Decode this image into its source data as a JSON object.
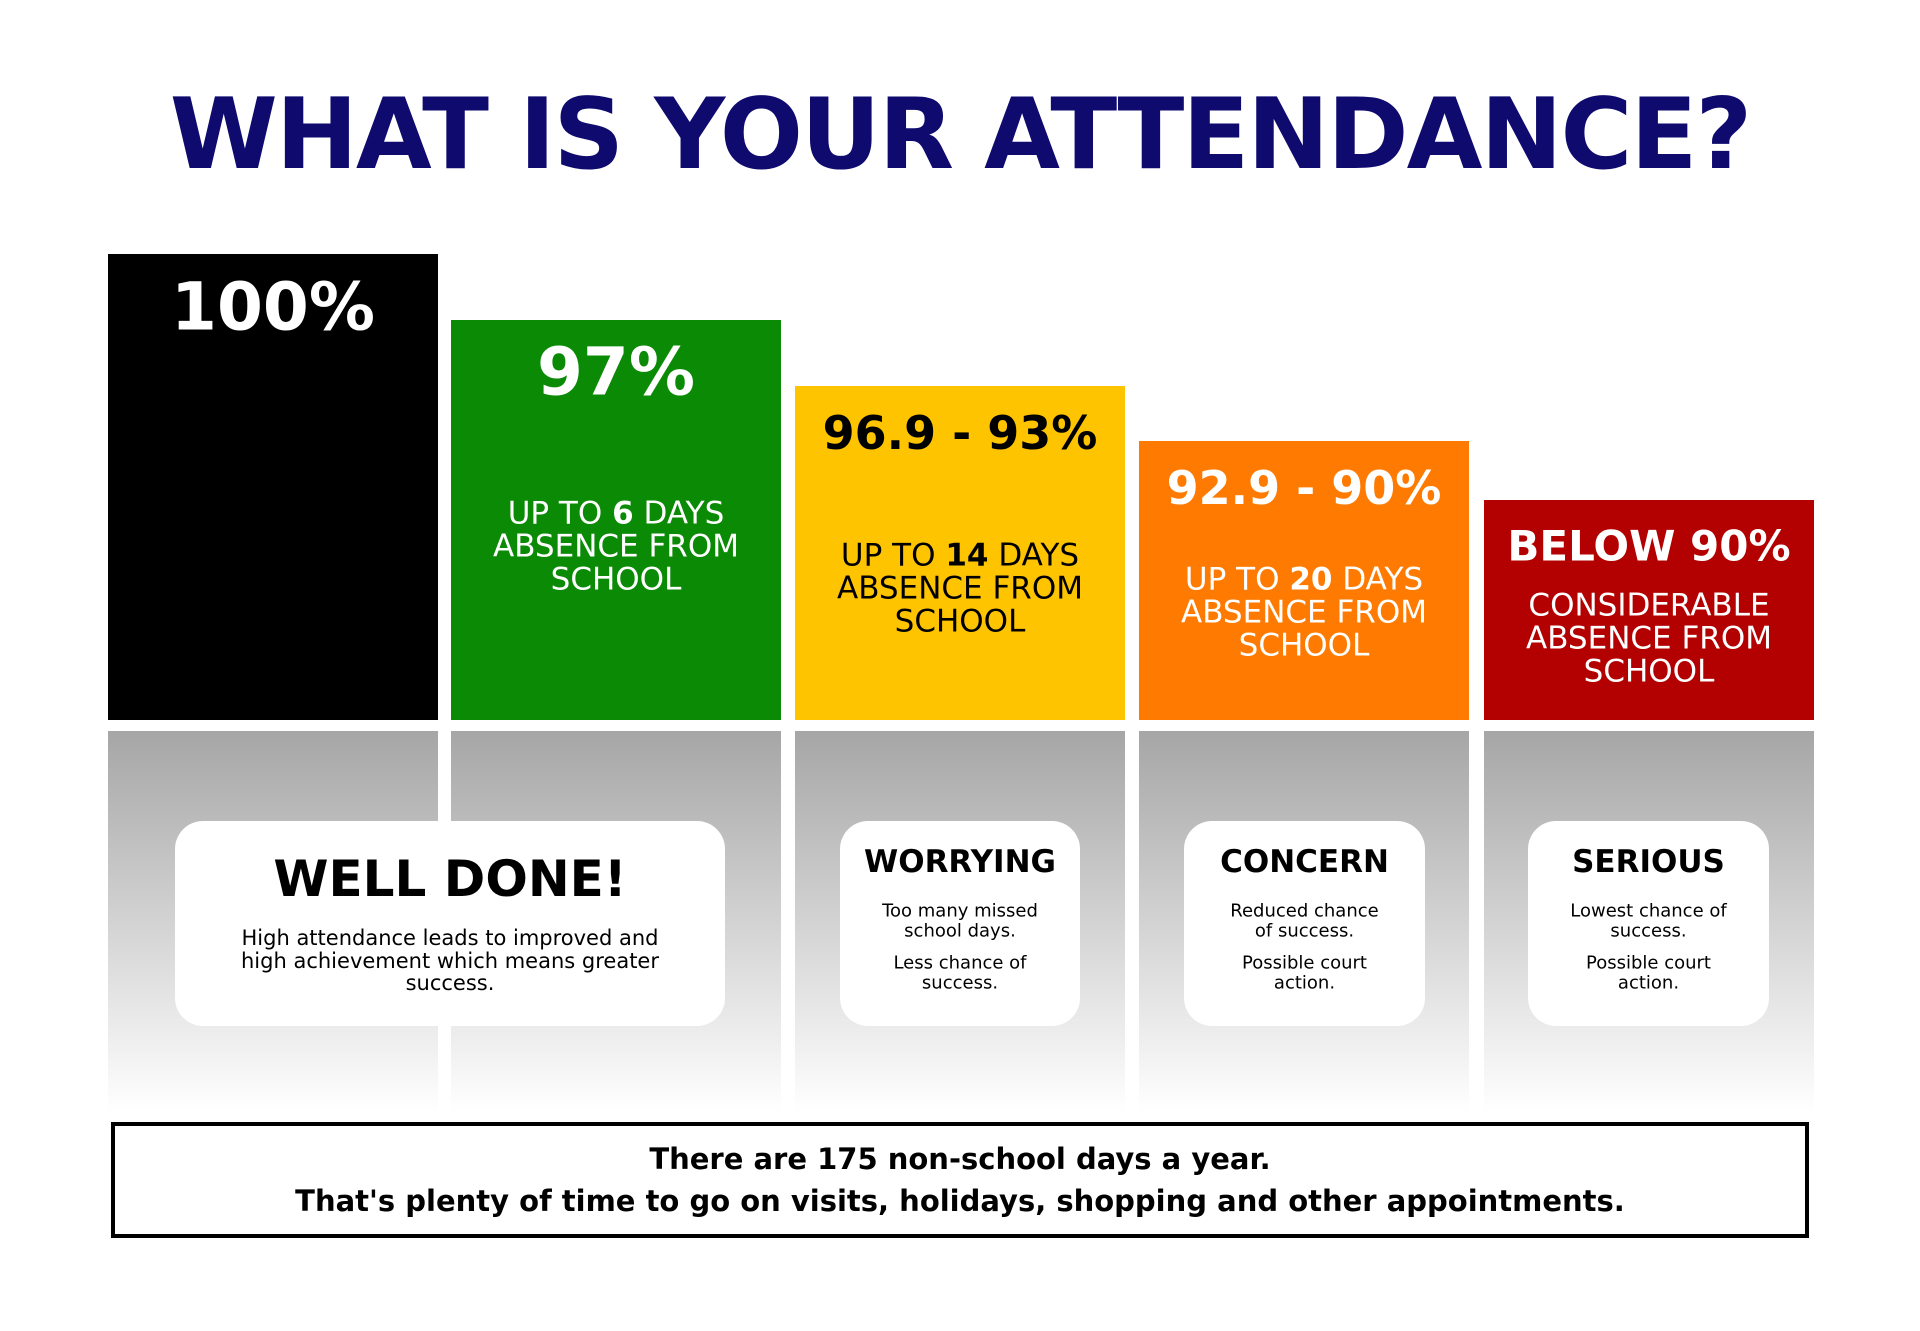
{
  "title": "WHAT IS YOUR ATTENDANCE?",
  "levels": [
    {
      "percent": "100%"
    },
    {
      "percent": "97%",
      "days": {
        "prefix": "UP TO ",
        "number": "6",
        "suffix": " DAYS"
      },
      "lines": [
        "ABSENCE FROM",
        "SCHOOL"
      ]
    },
    {
      "percent": "96.9 - 93%",
      "days": {
        "prefix": "UP TO ",
        "number": "14",
        "suffix": " DAYS"
      },
      "lines": [
        "ABSENCE FROM",
        "SCHOOL"
      ]
    },
    {
      "percent": "92.9 - 90%",
      "days": {
        "prefix": "UP TO ",
        "number": "20",
        "suffix": " DAYS"
      },
      "lines": [
        "ABSENCE FROM",
        "SCHOOL"
      ]
    },
    {
      "percent": "BELOW 90%",
      "lines": [
        "CONSIDERABLE",
        "ABSENCE FROM",
        "SCHOOL"
      ]
    }
  ],
  "cards": [
    {
      "heading": "WELL DONE!",
      "paragraphs": [
        [
          "High attendance leads to improved and",
          "high achievement which means greater",
          "success."
        ]
      ]
    },
    {
      "heading": "WORRYING",
      "paragraphs": [
        [
          "Too many missed",
          "school days."
        ],
        [
          "Less chance of",
          "success."
        ]
      ]
    },
    {
      "heading": "CONCERN",
      "paragraphs": [
        [
          "Reduced chance",
          "of success."
        ],
        [
          "Possible court",
          "action."
        ]
      ]
    },
    {
      "heading": "SERIOUS",
      "paragraphs": [
        [
          "Lowest chance of",
          "success."
        ],
        [
          "Possible court",
          "action."
        ]
      ]
    }
  ],
  "footer": [
    "There are 175 non-school days a year.",
    "That's plenty of time to go on visits, holidays, shopping and other appointments."
  ]
}
